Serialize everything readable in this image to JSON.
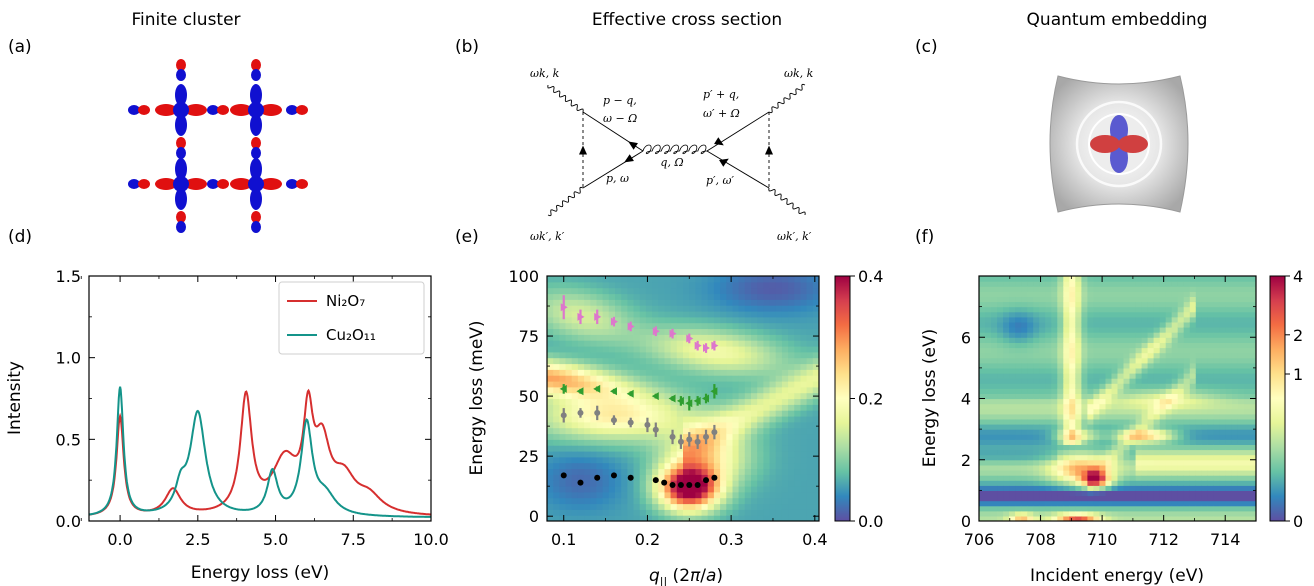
{
  "panels": {
    "a": {
      "label": "(a)",
      "title": "Finite cluster"
    },
    "b": {
      "label": "(b)",
      "title": "Effective cross section",
      "diagram_labels": {
        "in_left": "ωk, k",
        "out_left": "ωk′, k′",
        "in_right": "ωk, k",
        "out_right": "ωk′, k′",
        "upper_left": [
          "p − q,",
          "ω − Ω"
        ],
        "upper_right": [
          "p′ + q,",
          "ω′ + Ω"
        ],
        "lower_left": "p, ω",
        "lower_right": "p′, ω′",
        "center": "q, Ω"
      }
    },
    "c": {
      "label": "(c)",
      "title": "Quantum embedding"
    },
    "d": {
      "label": "(d)"
    },
    "e": {
      "label": "(e)"
    },
    "f": {
      "label": "(f)"
    }
  },
  "colors": {
    "ni": "#d62f2f",
    "cu": "#14948a",
    "pink": "#dd77cc",
    "green": "#2f9e2f",
    "gray": "#808080",
    "black": "#000000",
    "orbital_red": "#e01010",
    "orbital_blue": "#1010d0"
  },
  "chart_data": [
    {
      "panel": "d",
      "type": "line",
      "xlabel": "Energy loss (eV)",
      "ylabel": "Intensity",
      "xlim": [
        -1.0,
        10.0
      ],
      "ylim": [
        0.0,
        1.5
      ],
      "xticks": [
        "0.0",
        "2.5",
        "5.0",
        "7.5",
        "10.0"
      ],
      "yticks": [
        "0.0",
        "0.5",
        "1.0",
        "1.5"
      ],
      "legend": "top-right",
      "series": [
        {
          "name": "Ni₂O₇",
          "color": "#d62f2f",
          "peaks": [
            [
              0.0,
              0.61,
              0.14
            ],
            [
              1.7,
              0.16,
              0.3
            ],
            [
              4.05,
              0.71,
              0.22
            ],
            [
              5.3,
              0.32,
              0.5
            ],
            [
              6.05,
              0.52,
              0.18
            ],
            [
              6.5,
              0.38,
              0.3
            ],
            [
              7.2,
              0.2,
              0.45
            ],
            [
              8.0,
              0.1,
              0.5
            ]
          ]
        },
        {
          "name": "Cu₂O₁₁",
          "color": "#14948a",
          "peaks": [
            [
              0.0,
              0.79,
              0.13
            ],
            [
              1.95,
              0.14,
              0.2
            ],
            [
              2.5,
              0.63,
              0.3
            ],
            [
              4.9,
              0.26,
              0.2
            ],
            [
              6.0,
              0.55,
              0.22
            ],
            [
              6.6,
              0.12,
              0.4
            ]
          ]
        }
      ]
    },
    {
      "panel": "e",
      "type": "heatmap",
      "xlabel": "q|| (2π/a)",
      "ylabel": "Energy loss (meV)",
      "xlim": [
        0.08,
        0.405
      ],
      "ylim": [
        -2,
        100
      ],
      "xticks": [
        "0.1",
        "0.2",
        "0.3",
        "0.4"
      ],
      "yticks": [
        "0",
        "25",
        "50",
        "75",
        "100"
      ],
      "colorbar": {
        "range": [
          0.0,
          0.4
        ],
        "ticks": [
          "0.0",
          "0.2",
          "0.4"
        ]
      },
      "markers": [
        {
          "color": "#dd77cc",
          "shape": "right-triangle",
          "points": [
            [
              0.1,
              87,
              5
            ],
            [
              0.12,
              83,
              3
            ],
            [
              0.14,
              83,
              3
            ],
            [
              0.16,
              81,
              2
            ],
            [
              0.18,
              79,
              2
            ],
            [
              0.21,
              77,
              2
            ],
            [
              0.23,
              76,
              2
            ],
            [
              0.25,
              74,
              2
            ],
            [
              0.26,
              71,
              2
            ],
            [
              0.27,
              70,
              2
            ],
            [
              0.28,
              71,
              2
            ]
          ]
        },
        {
          "color": "#2f9e2f",
          "shape": "left-triangle",
          "points": [
            [
              0.1,
              53,
              2
            ],
            [
              0.12,
              52,
              1
            ],
            [
              0.14,
              53,
              1
            ],
            [
              0.16,
              52,
              1
            ],
            [
              0.18,
              51,
              1
            ],
            [
              0.21,
              50,
              1
            ],
            [
              0.23,
              49,
              1
            ],
            [
              0.24,
              48,
              2
            ],
            [
              0.25,
              47,
              3
            ],
            [
              0.26,
              48,
              2
            ],
            [
              0.27,
              49,
              2
            ],
            [
              0.28,
              52,
              3
            ]
          ]
        },
        {
          "color": "#808080",
          "shape": "circle",
          "points": [
            [
              0.1,
              42,
              3
            ],
            [
              0.12,
              43,
              2
            ],
            [
              0.14,
              43,
              3
            ],
            [
              0.16,
              40,
              2
            ],
            [
              0.18,
              39,
              2
            ],
            [
              0.2,
              38,
              3
            ],
            [
              0.21,
              36,
              3
            ],
            [
              0.23,
              33,
              3
            ],
            [
              0.24,
              31,
              3
            ],
            [
              0.25,
              32,
              3
            ],
            [
              0.26,
              31,
              3
            ],
            [
              0.27,
              33,
              3
            ],
            [
              0.28,
              35,
              3
            ]
          ]
        },
        {
          "color": "#000000",
          "shape": "circle",
          "points": [
            [
              0.1,
              17
            ],
            [
              0.12,
              14
            ],
            [
              0.14,
              16
            ],
            [
              0.16,
              17
            ],
            [
              0.18,
              16
            ],
            [
              0.21,
              15
            ],
            [
              0.22,
              14
            ],
            [
              0.23,
              13
            ],
            [
              0.24,
              13
            ],
            [
              0.25,
              13
            ],
            [
              0.26,
              13
            ],
            [
              0.27,
              15
            ],
            [
              0.28,
              16
            ]
          ]
        }
      ]
    },
    {
      "panel": "f",
      "type": "heatmap",
      "xlabel": "Incident energy (eV)",
      "ylabel": "Energy loss (eV)",
      "xlim": [
        706,
        715
      ],
      "ylim": [
        0,
        8
      ],
      "xticks": [
        "706",
        "708",
        "710",
        "712",
        "714"
      ],
      "yticks": [
        "0",
        "2",
        "4",
        "6"
      ],
      "colorbar": {
        "ticks": [
          "0",
          "1",
          "2",
          "4"
        ]
      }
    }
  ]
}
